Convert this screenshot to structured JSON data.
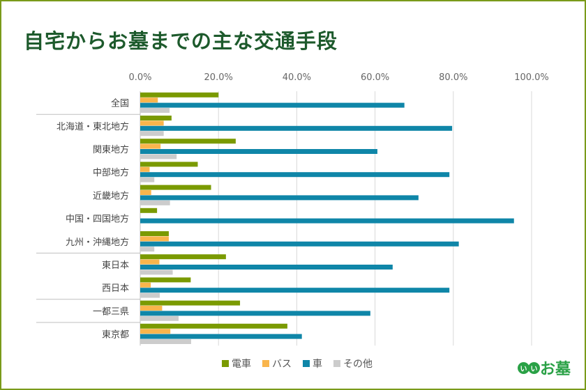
{
  "chart_data": {
    "type": "bar",
    "orientation": "horizontal",
    "title": "自宅からお墓までの主な交通手段",
    "categories": [
      "全国",
      "北海道・東北地方",
      "関東地方",
      "中部地方",
      "近畿地方",
      "中国・四国地方",
      "九州・沖縄地方",
      "東日本",
      "西日本",
      "一都三県",
      "東京都"
    ],
    "series": [
      {
        "name": "電車",
        "color": "#7a9a01",
        "values": [
          20.0,
          8.0,
          24.4,
          14.7,
          18.1,
          4.3,
          7.3,
          21.9,
          12.9,
          25.5,
          37.6
        ]
      },
      {
        "name": "バス",
        "color": "#f9b54c",
        "values": [
          4.5,
          6.0,
          5.2,
          2.4,
          2.8,
          0,
          7.3,
          4.9,
          2.7,
          5.6,
          7.7
        ]
      },
      {
        "name": "車",
        "color": "#0f86a8",
        "values": [
          67.5,
          79.7,
          60.6,
          79.0,
          71.1,
          95.5,
          81.4,
          64.5,
          79.0,
          58.8,
          41.3
        ]
      },
      {
        "name": "その他",
        "color": "#cccccc",
        "values": [
          7.5,
          6.0,
          9.3,
          3.6,
          7.6,
          0,
          3.6,
          8.3,
          5.0,
          9.8,
          13.0
        ]
      }
    ],
    "xlim": [
      0,
      100
    ],
    "ticks": [
      "0.0%",
      "20.0%",
      "40.0%",
      "60.0%",
      "80.0%",
      "100.0%"
    ],
    "grid": true,
    "legend_position": "bottom"
  },
  "logo": {
    "ii": "い",
    "text": "お墓"
  }
}
